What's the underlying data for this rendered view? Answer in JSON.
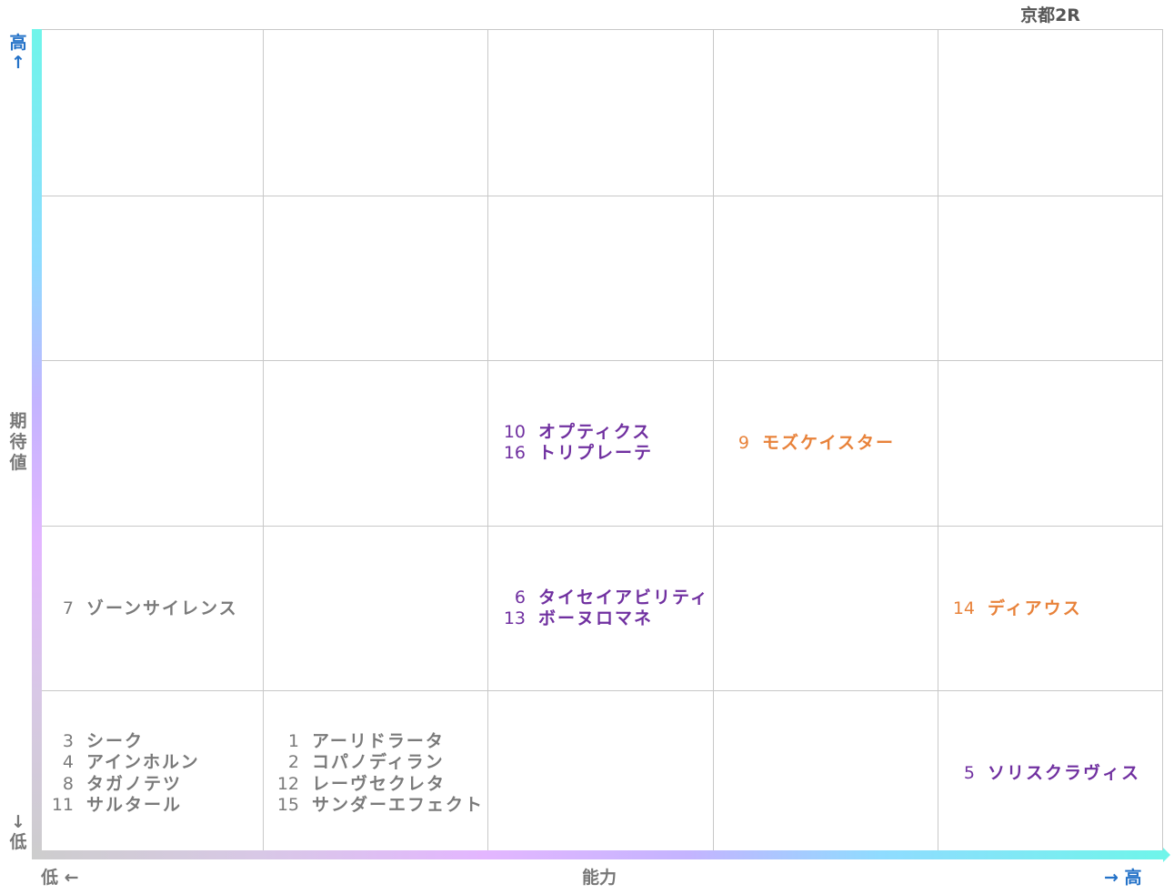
{
  "title": "京都2R",
  "axes": {
    "y_high": "高↑",
    "y_label": "期待値",
    "y_low": "↓低",
    "x_low": "低 ←",
    "x_label": "能力",
    "x_high": "→ 高"
  },
  "colors": {
    "gray": "#7a7a7a",
    "purple": "#7030a0",
    "orange": "#e8823a",
    "accent": "#2472c8"
  },
  "cells": {
    "r3c3": [
      {
        "num": "10",
        "name": "オプティクス"
      },
      {
        "num": "16",
        "name": "トリプレーテ"
      }
    ],
    "r3c4": [
      {
        "num": "9",
        "name": "モズケイスター"
      }
    ],
    "r4c1": [
      {
        "num": "7",
        "name": "ゾーンサイレンス"
      }
    ],
    "r4c3": [
      {
        "num": "6",
        "name": "タイセイアビリティ"
      },
      {
        "num": "13",
        "name": "ボーヌロマネ"
      }
    ],
    "r4c5": [
      {
        "num": "14",
        "name": "ディアウス"
      }
    ],
    "r5c1": [
      {
        "num": "3",
        "name": "シーク"
      },
      {
        "num": "4",
        "name": "アインホルン"
      },
      {
        "num": "8",
        "name": "タガノテツ"
      },
      {
        "num": "11",
        "name": "サルタール"
      }
    ],
    "r5c2": [
      {
        "num": "1",
        "name": "アーリドラータ"
      },
      {
        "num": "2",
        "name": "コパノディラン"
      },
      {
        "num": "12",
        "name": "レーヴセクレタ"
      },
      {
        "num": "15",
        "name": "サンダーエフェクト"
      }
    ],
    "r5c5": [
      {
        "num": "5",
        "name": "ソリスクラヴィス"
      }
    ]
  }
}
